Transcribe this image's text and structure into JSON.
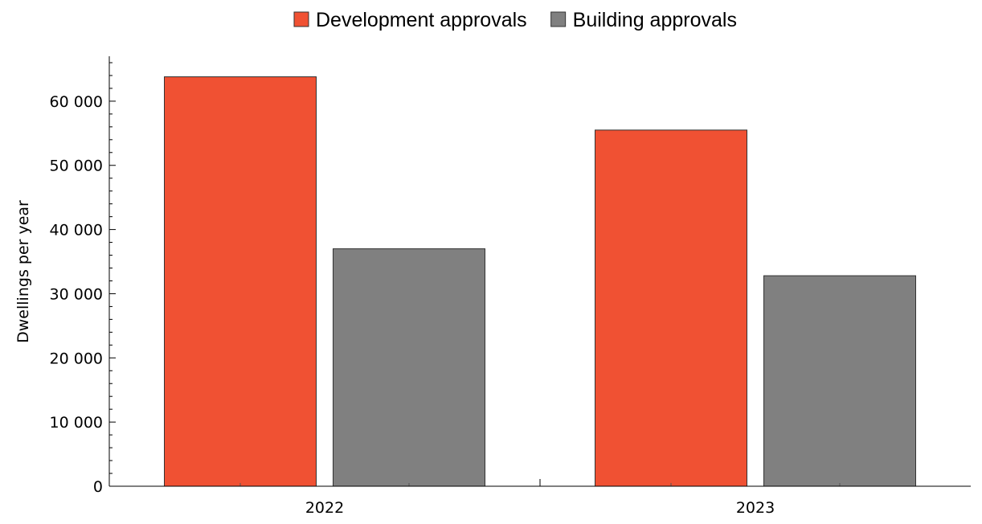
{
  "chart_data": {
    "type": "bar",
    "categories": [
      "2022",
      "2023"
    ],
    "series": [
      {
        "name": "Development approvals",
        "values": [
          63800,
          55500
        ],
        "color": "#f05133"
      },
      {
        "name": "Building approvals",
        "values": [
          37000,
          32800
        ],
        "color": "#808080"
      }
    ],
    "xlabel": "",
    "ylabel": "Dwellings per year",
    "ylim": [
      0,
      67000
    ],
    "yticks": [
      0,
      10000,
      20000,
      30000,
      40000,
      50000,
      60000
    ],
    "ytick_labels": [
      "0",
      "10 000",
      "20 000",
      "30 000",
      "40 000",
      "50 000",
      "60 000"
    ],
    "grid": false,
    "legend_position": "top-center"
  }
}
